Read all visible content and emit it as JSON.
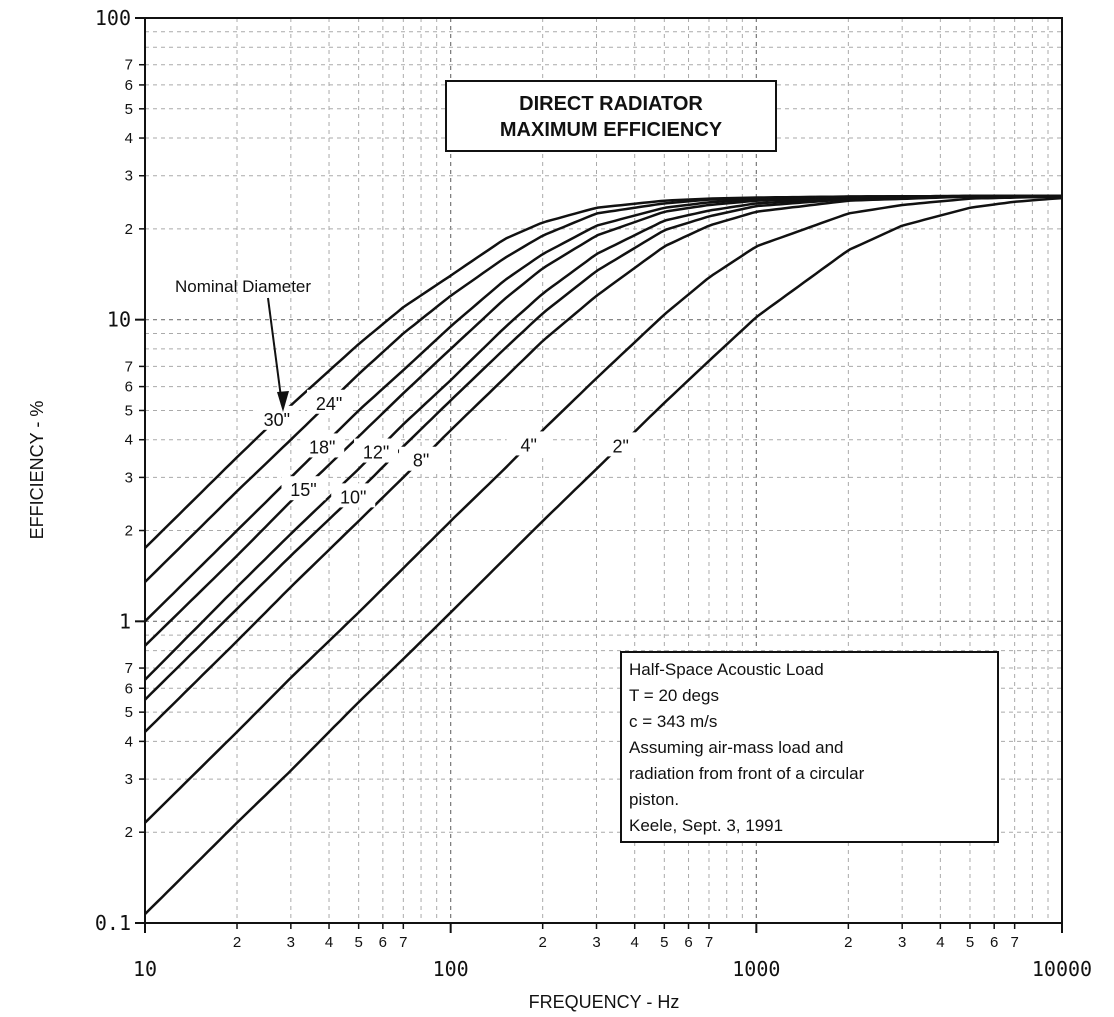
{
  "chart_data": {
    "type": "line",
    "title": "DIRECT RADIATOR MAXIMUM EFFICIENCY",
    "xlabel": "FREQUENCY - Hz",
    "ylabel": "EFFICIENCY - %",
    "xscale": "log",
    "yscale": "log",
    "xlim": [
      10,
      10000
    ],
    "ylim": [
      0.1,
      100
    ],
    "grid": true,
    "x_major_ticks": [
      "10",
      "100",
      "1000",
      "10000"
    ],
    "x_minor_ticks": [
      "2",
      "3",
      "4",
      "5",
      "6",
      "7"
    ],
    "y_major_ticks": [
      "0.1",
      "1",
      "10",
      "100"
    ],
    "y_minor_ticks": [
      "2",
      "3",
      "4",
      "5",
      "6",
      "7"
    ],
    "annotation_arrow": "Nominal Diameter",
    "note_lines": [
      "Half-Space Acoustic Load",
      "T = 20 degs",
      "c = 343 m/s",
      "Assuming air-mass load and",
      "radiation from front of a circular",
      "piston.",
      "Keele, Sept. 3, 1991"
    ],
    "series": [
      {
        "name": "30\"",
        "label_at_x": 27,
        "x": [
          10,
          20,
          30,
          50,
          70,
          100,
          150,
          200,
          300,
          500,
          700,
          1000,
          2000,
          5000,
          10000
        ],
        "y": [
          1.75,
          3.5,
          5.2,
          8.3,
          11,
          14,
          18.5,
          21,
          23.5,
          24.8,
          25.2,
          25.4,
          25.6,
          25.7,
          25.7
        ]
      },
      {
        "name": "24\"",
        "label_at_x": 40,
        "x": [
          10,
          20,
          30,
          50,
          70,
          100,
          150,
          200,
          300,
          500,
          700,
          1000,
          2000,
          5000,
          10000
        ],
        "y": [
          1.35,
          2.7,
          4.0,
          6.6,
          9.0,
          12,
          16,
          19,
          22.5,
          24.3,
          25,
          25.3,
          25.6,
          25.7,
          25.7
        ]
      },
      {
        "name": "18\"",
        "label_at_x": 38,
        "x": [
          10,
          20,
          30,
          50,
          70,
          100,
          150,
          200,
          300,
          500,
          700,
          1000,
          2000,
          5000,
          10000
        ],
        "y": [
          1.0,
          2.0,
          3.0,
          5.0,
          6.8,
          9.5,
          13.5,
          16.5,
          20.5,
          23.5,
          24.5,
          25.1,
          25.5,
          25.7,
          25.7
        ]
      },
      {
        "name": "15\"",
        "label_at_x": 33,
        "x": [
          10,
          20,
          30,
          50,
          70,
          100,
          150,
          200,
          300,
          500,
          700,
          1000,
          2000,
          5000,
          10000
        ],
        "y": [
          0.83,
          1.65,
          2.5,
          4.1,
          5.7,
          8.0,
          11.7,
          14.8,
          19,
          22.8,
          24,
          24.8,
          25.5,
          25.7,
          25.7
        ]
      },
      {
        "name": "12\"",
        "label_at_x": 57,
        "x": [
          10,
          20,
          30,
          50,
          70,
          100,
          150,
          200,
          300,
          500,
          700,
          1000,
          2000,
          5000,
          10000
        ],
        "y": [
          0.64,
          1.3,
          1.95,
          3.2,
          4.5,
          6.3,
          9.4,
          12.2,
          16.5,
          21.3,
          23,
          24.3,
          25.3,
          25.7,
          25.7
        ]
      },
      {
        "name": "10\"",
        "label_at_x": 48,
        "x": [
          10,
          20,
          30,
          50,
          70,
          100,
          150,
          200,
          300,
          500,
          700,
          1000,
          2000,
          5000,
          10000
        ],
        "y": [
          0.55,
          1.1,
          1.65,
          2.7,
          3.8,
          5.4,
          8.0,
          10.5,
          14.5,
          19.8,
          22,
          23.8,
          25.1,
          25.6,
          25.7
        ]
      },
      {
        "name": "8\"",
        "label_at_x": 80,
        "x": [
          10,
          20,
          30,
          50,
          70,
          100,
          150,
          200,
          300,
          500,
          700,
          1000,
          2000,
          5000,
          10000
        ],
        "y": [
          0.43,
          0.86,
          1.3,
          2.15,
          3.0,
          4.3,
          6.4,
          8.5,
          12.0,
          17.5,
          20.5,
          22.8,
          24.8,
          25.6,
          25.7
        ]
      },
      {
        "name": "4\"",
        "label_at_x": 180,
        "x": [
          10,
          20,
          30,
          50,
          70,
          100,
          150,
          200,
          300,
          500,
          700,
          1000,
          2000,
          3000,
          5000,
          10000
        ],
        "y": [
          0.215,
          0.43,
          0.65,
          1.07,
          1.5,
          2.15,
          3.2,
          4.3,
          6.4,
          10.4,
          13.8,
          17.5,
          22.5,
          24.0,
          25.2,
          25.6
        ]
      },
      {
        "name": "2\"",
        "label_at_x": 360,
        "x": [
          10,
          20,
          30,
          50,
          70,
          100,
          200,
          300,
          500,
          700,
          1000,
          2000,
          3000,
          5000,
          7000,
          10000
        ],
        "y": [
          0.107,
          0.215,
          0.32,
          0.54,
          0.75,
          1.07,
          2.15,
          3.2,
          5.3,
          7.3,
          10.2,
          17.0,
          20.5,
          23.5,
          24.6,
          25.3
        ]
      }
    ]
  }
}
